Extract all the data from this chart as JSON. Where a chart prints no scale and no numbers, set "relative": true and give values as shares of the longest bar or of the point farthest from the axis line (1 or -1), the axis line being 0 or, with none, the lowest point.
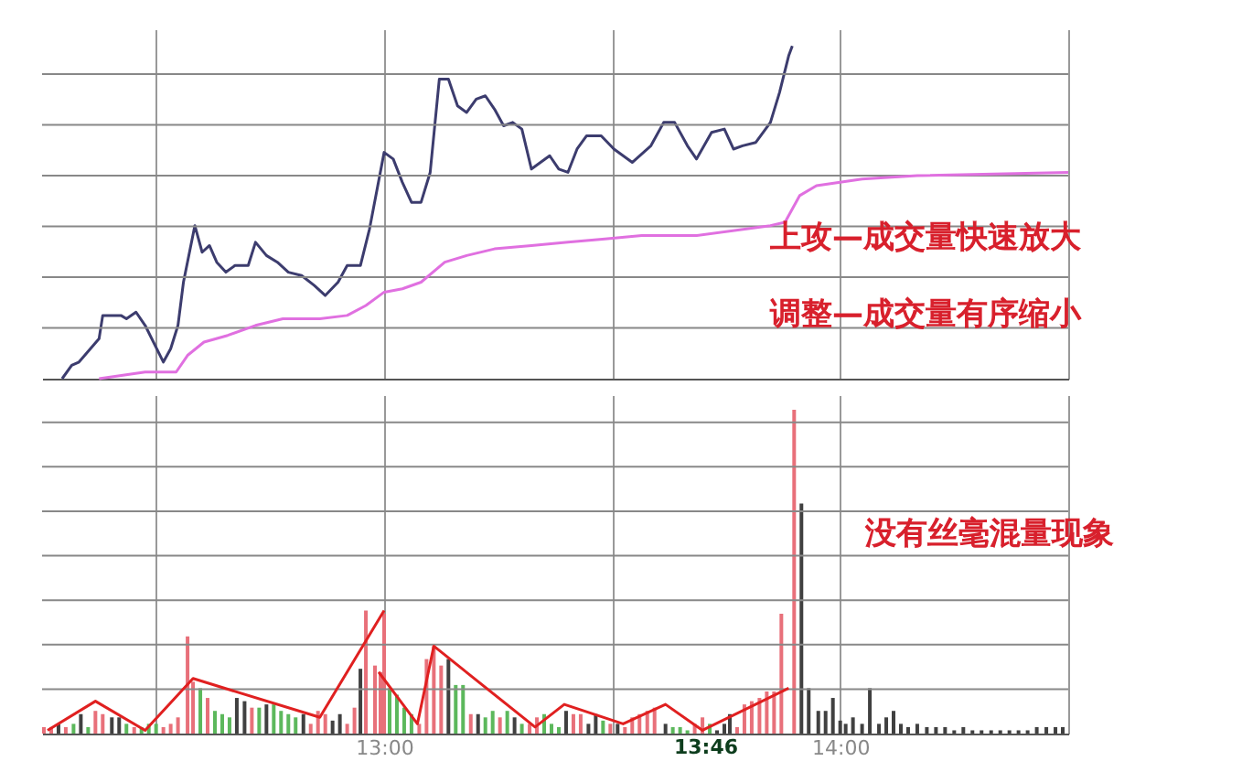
{
  "chart_data": [
    {
      "type": "line",
      "relative": true,
      "grid": true,
      "tick_labels": false,
      "xlim": [
        12.25,
        14.5
      ],
      "xticks": [
        {
          "value": 12.5,
          "label": null
        },
        {
          "value": 13,
          "label": null
        },
        {
          "value": 13.5,
          "label": null
        },
        {
          "value": 14,
          "label": null
        },
        {
          "value": 14.5,
          "label": null
        }
      ],
      "annotations": [
        "上攻—成交量快速放大",
        "调整—成交量有序缩小"
      ],
      "series": [
        {
          "color": "#3c3c6e",
          "x": [
            12.294,
            12.315,
            12.331,
            12.375,
            12.383,
            12.423,
            12.435,
            12.456,
            12.476,
            12.516,
            12.532,
            12.548,
            12.56,
            12.585,
            12.601,
            12.617,
            12.633,
            12.653,
            12.673,
            12.702,
            12.718,
            12.742,
            12.766,
            12.79,
            12.819,
            12.847,
            12.871,
            12.899,
            12.919,
            12.948,
            12.968,
            13.0,
            13.02,
            13.04,
            13.06,
            13.081,
            13.101,
            13.121,
            13.141,
            13.161,
            13.181,
            13.202,
            13.222,
            13.242,
            13.262,
            13.282,
            13.302,
            13.323,
            13.343,
            13.363,
            13.383,
            13.403,
            13.423,
            13.444,
            13.476,
            13.504,
            13.544,
            13.585,
            13.613,
            13.637,
            13.665,
            13.685,
            13.718,
            13.746,
            13.766,
            13.786,
            13.815,
            13.847,
            13.867,
            13.887,
            13.895
          ],
          "values": [
            0,
            0.04,
            0.05,
            0.12,
            0.19,
            0.19,
            0.18,
            0.2,
            0.16,
            0.05,
            0.09,
            0.16,
            0.29,
            0.46,
            0.38,
            0.4,
            0.35,
            0.32,
            0.34,
            0.34,
            0.41,
            0.37,
            0.35,
            0.32,
            0.31,
            0.28,
            0.25,
            0.29,
            0.34,
            0.34,
            0.45,
            0.68,
            0.66,
            0.59,
            0.53,
            0.53,
            0.62,
            0.9,
            0.9,
            0.82,
            0.8,
            0.84,
            0.85,
            0.81,
            0.76,
            0.77,
            0.75,
            0.63,
            0.65,
            0.67,
            0.63,
            0.62,
            0.69,
            0.73,
            0.73,
            0.69,
            0.65,
            0.7,
            0.77,
            0.77,
            0.7,
            0.66,
            0.74,
            0.75,
            0.69,
            0.7,
            0.71,
            0.77,
            0.86,
            0.97,
            1
          ]
        },
        {
          "color": "#e070e0",
          "x": [
            12.375,
            12.476,
            12.544,
            12.569,
            12.605,
            12.657,
            12.718,
            12.778,
            12.859,
            12.919,
            12.96,
            13.0,
            13.04,
            13.081,
            13.133,
            13.181,
            13.242,
            13.323,
            13.403,
            13.484,
            13.565,
            13.685,
            13.847,
            13.879,
            13.911,
            13.948,
            14.048,
            14.169,
            14.5
          ],
          "values": [
            0,
            0.02,
            0.02,
            0.07,
            0.11,
            0.13,
            0.16,
            0.18,
            0.18,
            0.19,
            0.22,
            0.26,
            0.27,
            0.29,
            0.35,
            0.37,
            0.39,
            0.4,
            0.41,
            0.42,
            0.43,
            0.43,
            0.46,
            0.47,
            0.55,
            0.58,
            0.6,
            0.61,
            0.62
          ]
        }
      ]
    },
    {
      "type": "bar",
      "relative": true,
      "grid": true,
      "tick_labels": "x",
      "xlim": [
        12.25,
        14.5
      ],
      "xticks": [
        {
          "value": 12.5,
          "label": null
        },
        {
          "value": 13,
          "label": "13:00"
        },
        {
          "value": 13.5,
          "label": null
        },
        {
          "value": 14,
          "label": "14:00"
        },
        {
          "value": 14.5,
          "label": null
        }
      ],
      "annotations": [
        "没有丝毫混量现象",
        "13:46"
      ],
      "series": [
        {
          "type": "bar",
          "x": [
            12.254,
            12.27,
            12.286,
            12.302,
            12.319,
            12.335,
            12.351,
            12.367,
            12.383,
            12.403,
            12.419,
            12.435,
            12.452,
            12.468,
            12.484,
            12.5,
            12.516,
            12.532,
            12.548,
            12.569,
            12.581,
            12.597,
            12.613,
            12.629,
            12.645,
            12.661,
            12.677,
            12.694,
            12.71,
            12.726,
            12.742,
            12.758,
            12.774,
            12.79,
            12.806,
            12.823,
            12.839,
            12.855,
            12.871,
            12.887,
            12.903,
            12.919,
            12.935,
            12.948,
            12.96,
            12.98,
            12.992,
            13.0,
            13.012,
            13.028,
            13.044,
            13.06,
            13.077,
            13.093,
            13.109,
            13.125,
            13.141,
            13.157,
            13.173,
            13.19,
            13.206,
            13.222,
            13.238,
            13.254,
            13.27,
            13.286,
            13.302,
            13.319,
            13.335,
            13.351,
            13.367,
            13.383,
            13.399,
            13.415,
            13.431,
            13.448,
            13.464,
            13.48,
            13.496,
            13.512,
            13.528,
            13.544,
            13.56,
            13.577,
            13.593,
            13.617,
            13.633,
            13.649,
            13.665,
            13.681,
            13.698,
            13.714,
            13.73,
            13.746,
            13.758,
            13.774,
            13.79,
            13.806,
            13.823,
            13.839,
            13.855,
            13.871,
            13.899,
            13.915,
            13.931,
            13.952,
            13.968,
            13.984,
            14.0,
            14.012,
            14.028,
            14.048,
            14.065,
            14.085,
            14.101,
            14.117,
            14.133,
            14.149,
            14.169,
            14.19,
            14.21,
            14.23,
            14.25,
            14.27,
            14.29,
            14.31,
            14.331,
            14.351,
            14.371,
            14.391,
            14.411,
            14.431,
            14.452,
            14.472,
            14.488
          ],
          "values": [
            0.02,
            0.02,
            0.03,
            0.02,
            0.03,
            0.06,
            0.02,
            0.07,
            0.06,
            0.05,
            0.05,
            0.03,
            0.02,
            0.02,
            0.03,
            0.03,
            0.02,
            0.03,
            0.05,
            0.3,
            0.16,
            0.14,
            0.11,
            0.07,
            0.06,
            0.05,
            0.11,
            0.1,
            0.08,
            0.08,
            0.09,
            0.09,
            0.07,
            0.06,
            0.05,
            0.06,
            0.03,
            0.07,
            0.06,
            0.04,
            0.06,
            0.03,
            0.08,
            0.2,
            0.38,
            0.21,
            0.19,
            0.37,
            0.14,
            0.12,
            0.08,
            0.06,
            0.03,
            0.23,
            0.27,
            0.21,
            0.23,
            0.15,
            0.15,
            0.06,
            0.06,
            0.05,
            0.07,
            0.05,
            0.07,
            0.05,
            0.03,
            0.03,
            0.05,
            0.06,
            0.03,
            0.02,
            0.07,
            0.06,
            0.06,
            0.03,
            0.06,
            0.04,
            0.03,
            0.03,
            0.02,
            0.05,
            0.06,
            0.07,
            0.08,
            0.03,
            0.02,
            0.02,
            0.01,
            0.03,
            0.05,
            0.03,
            0.01,
            0.03,
            0.06,
            0.02,
            0.09,
            0.1,
            0.11,
            0.13,
            0.13,
            0.37,
            1,
            0.71,
            0.14,
            0.07,
            0.07,
            0.11,
            0.04,
            0.03,
            0.05,
            0.03,
            0.14,
            0.03,
            0.05,
            0.07,
            0.03,
            0.02,
            0.03,
            0.02,
            0.02,
            0.02,
            0.01,
            0.02,
            0.01,
            0.01,
            0.01,
            0.01,
            0.01,
            0.01,
            0.01,
            0.02,
            0.02,
            0.02,
            0.02
          ],
          "colors": [
            "#e8707a",
            "#e8707a",
            "#404040",
            "#e8707a",
            "#5cb85c",
            "#404040",
            "#5cb85c",
            "#e8707a",
            "#e8707a",
            "#404040",
            "#404040",
            "#5cb85c",
            "#e8707a",
            "#5cb85c",
            "#5cb85c",
            "#5cb85c",
            "#e8707a",
            "#e8707a",
            "#e8707a",
            "#e8707a",
            "#e8707a",
            "#5cb85c",
            "#e8707a",
            "#5cb85c",
            "#5cb85c",
            "#5cb85c",
            "#404040",
            "#404040",
            "#e8707a",
            "#5cb85c",
            "#404040",
            "#5cb85c",
            "#5cb85c",
            "#5cb85c",
            "#5cb85c",
            "#404040",
            "#e8707a",
            "#e8707a",
            "#e8707a",
            "#404040",
            "#404040",
            "#e8707a",
            "#e8707a",
            "#404040",
            "#e8707a",
            "#e8707a",
            "#e8707a",
            "#e8707a",
            "#5cb85c",
            "#5cb85c",
            "#5cb85c",
            "#5cb85c",
            "#e8707a",
            "#e8707a",
            "#e8707a",
            "#e8707a",
            "#404040",
            "#5cb85c",
            "#5cb85c",
            "#e8707a",
            "#404040",
            "#5cb85c",
            "#5cb85c",
            "#e8707a",
            "#5cb85c",
            "#404040",
            "#5cb85c",
            "#e8707a",
            "#e8707a",
            "#5cb85c",
            "#5cb85c",
            "#5cb85c",
            "#404040",
            "#e8707a",
            "#e8707a",
            "#404040",
            "#404040",
            "#5cb85c",
            "#e8707a",
            "#404040",
            "#e8707a",
            "#e8707a",
            "#e8707a",
            "#e8707a",
            "#e8707a",
            "#404040",
            "#5cb85c",
            "#5cb85c",
            "#5cb85c",
            "#e8707a",
            "#e8707a",
            "#5cb85c",
            "#404040",
            "#404040",
            "#404040",
            "#e8707a",
            "#e8707a",
            "#e8707a",
            "#e8707a",
            "#e8707a",
            "#e8707a",
            "#e8707a",
            "#e8707a",
            "#404040",
            "#404040",
            "#404040",
            "#404040",
            "#404040",
            "#404040",
            "#404040",
            "#404040",
            "#404040",
            "#404040",
            "#404040",
            "#404040",
            "#404040",
            "#404040",
            "#404040",
            "#404040",
            "#404040",
            "#404040",
            "#404040",
            "#404040",
            "#404040",
            "#404040",
            "#404040",
            "#404040",
            "#404040",
            "#404040",
            "#404040",
            "#404040",
            "#404040",
            "#404040",
            "#404040",
            "#404040"
          ]
        },
        {
          "type": "line",
          "color": "#e02020",
          "x": [
            12.262,
            12.367,
            12.476,
            12.581,
            12.859,
            13.0
          ],
          "values": [
            0.01,
            0.1,
            0.01,
            0.17,
            0.05,
            0.38
          ]
        },
        {
          "type": "line",
          "color": "#e02020",
          "x": [
            12.988,
            13.073,
            13.109,
            13.331,
            13.395,
            13.524,
            13.617,
            13.698,
            13.887
          ],
          "values": [
            0.19,
            0.03,
            0.27,
            0.02,
            0.09,
            0.03,
            0.09,
            0.01,
            0.14
          ]
        }
      ]
    }
  ]
}
